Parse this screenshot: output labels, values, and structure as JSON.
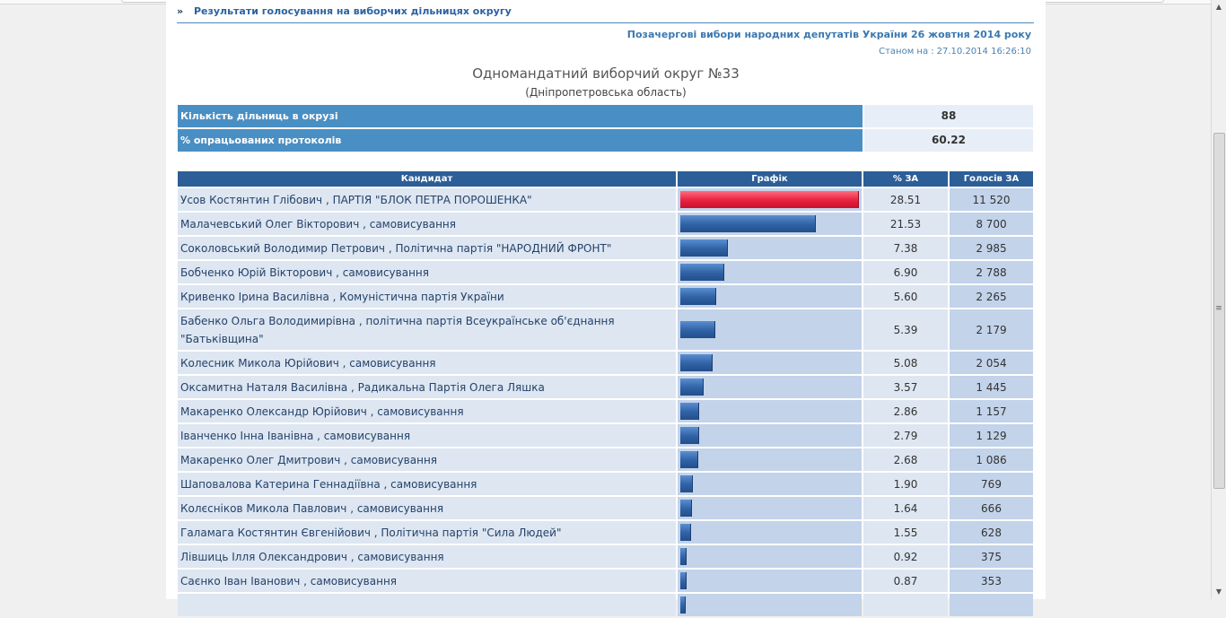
{
  "breadcrumb": {
    "chevron": "»",
    "text": "Результати голосування на виборчих дільницях округу"
  },
  "election_title": "Позачергові вибори народних депутатів України 26 жовтня 2014 року",
  "as_of": {
    "label": "Станом на :",
    "value": "27.10.2014 16:26:10"
  },
  "district": {
    "title": "Одномандатний виборчий округ №33",
    "region": "(Дніпропетровська область)"
  },
  "summary": {
    "precincts_label": "Кількість дільниць в окрузі",
    "precincts_value": "88",
    "processed_label": "% опрацьованих протоколів",
    "processed_value": "60.22"
  },
  "table": {
    "headers": {
      "candidate": "Кандидат",
      "graph": "Графік",
      "percent": "% ЗА",
      "votes": "Голосів ЗА"
    },
    "rows": [
      {
        "candidate": "Усов Костянтин Глібович , ПАРТІЯ \"БЛОК ПЕТРА ПОРОШЕНКА\"",
        "percent": "28.51",
        "votes": "11 520",
        "bar_fraction": 1.0,
        "lead": true
      },
      {
        "candidate": "Малачевський Олег Вікторович , самовисування",
        "percent": "21.53",
        "votes": "8 700",
        "bar_fraction": 0.755
      },
      {
        "candidate": "Соколовський Володимир Петрович , Політична партія \"НАРОДНИЙ ФРОНТ\"",
        "percent": "7.38",
        "votes": "2 985",
        "bar_fraction": 0.259
      },
      {
        "candidate": "Бобченко Юрій Вікторович , самовисування",
        "percent": "6.90",
        "votes": "2 788",
        "bar_fraction": 0.242
      },
      {
        "candidate": "Кривенко Ірина Василівна , Комуністична партія України",
        "percent": "5.60",
        "votes": "2 265",
        "bar_fraction": 0.196
      },
      {
        "candidate": "Бабенко Ольга Володимирівна , політична партія Всеукраїнське об'єднання \"Батьківщина\"",
        "percent": "5.39",
        "votes": "2 179",
        "bar_fraction": 0.189,
        "tall": true
      },
      {
        "candidate": "Колесник Микола Юрійович , самовисування",
        "percent": "5.08",
        "votes": "2 054",
        "bar_fraction": 0.178
      },
      {
        "candidate": "Оксамитна Наталя Василівна , Радикальна Партія Олега Ляшка",
        "percent": "3.57",
        "votes": "1 445",
        "bar_fraction": 0.125
      },
      {
        "candidate": "Макаренко Олександр Юрійович , самовисування",
        "percent": "2.86",
        "votes": "1 157",
        "bar_fraction": 0.1
      },
      {
        "candidate": "Іванченко Інна Іванівна , самовисування",
        "percent": "2.79",
        "votes": "1 129",
        "bar_fraction": 0.098
      },
      {
        "candidate": "Макаренко Олег Дмитрович , самовисування",
        "percent": "2.68",
        "votes": "1 086",
        "bar_fraction": 0.094
      },
      {
        "candidate": "Шаповалова Катерина Геннадіївна , самовисування",
        "percent": "1.90",
        "votes": "769",
        "bar_fraction": 0.067
      },
      {
        "candidate": "Колєсніков Микола Павлович , самовисування",
        "percent": "1.64",
        "votes": "666",
        "bar_fraction": 0.058
      },
      {
        "candidate": "Галамага Костянтин Євгенійович , Політична партія \"Сила Людей\"",
        "percent": "1.55",
        "votes": "628",
        "bar_fraction": 0.054
      },
      {
        "candidate": "Лівшиць Ілля Олександрович , самовисування",
        "percent": "0.92",
        "votes": "375",
        "bar_fraction": 0.032
      },
      {
        "candidate": "Саєнко Іван Іванович , самовисування",
        "percent": "0.87",
        "votes": "353",
        "bar_fraction": 0.031
      },
      {
        "candidate": "",
        "percent": "",
        "votes": "",
        "bar_fraction": 0.025
      }
    ]
  },
  "colors": {
    "lead_bar": "#e8213f",
    "bar": "#2f62a5",
    "header": "#2c5e97",
    "summary_label": "#4a8fc3"
  },
  "icons": {
    "scroll_up": "chevron-up-icon",
    "scroll_down": "chevron-down-icon"
  }
}
